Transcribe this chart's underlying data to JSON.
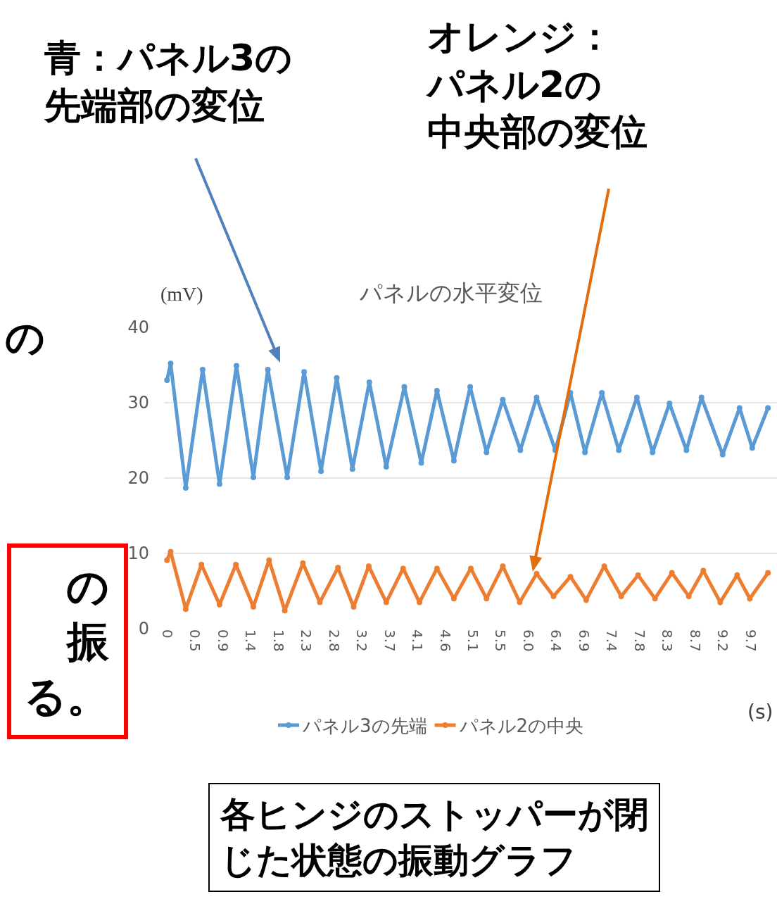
{
  "chart_data": {
    "type": "line",
    "title": "パネルの水平変位",
    "xlabel": "(s)",
    "ylabel": "(mV)",
    "xlim": [
      -0.05,
      10.1
    ],
    "ylim": [
      0,
      40
    ],
    "yticks": [
      0,
      10,
      20,
      30,
      40
    ],
    "xticks": [
      {
        "value": 0,
        "label": "0"
      },
      {
        "value": 0.46,
        "label": "0.5"
      },
      {
        "value": 0.92,
        "label": "0.9"
      },
      {
        "value": 1.38,
        "label": "1.4"
      },
      {
        "value": 1.84,
        "label": "1.8"
      },
      {
        "value": 2.3,
        "label": "2.3"
      },
      {
        "value": 2.76,
        "label": "2.8"
      },
      {
        "value": 3.22,
        "label": "3.2"
      },
      {
        "value": 3.68,
        "label": "3.7"
      },
      {
        "value": 4.14,
        "label": "4.1"
      },
      {
        "value": 4.6,
        "label": "4.6"
      },
      {
        "value": 5.06,
        "label": "5.1"
      },
      {
        "value": 5.52,
        "label": "5.5"
      },
      {
        "value": 5.98,
        "label": "6.0"
      },
      {
        "value": 6.44,
        "label": "6.4"
      },
      {
        "value": 6.9,
        "label": "6.9"
      },
      {
        "value": 7.36,
        "label": "7.4"
      },
      {
        "value": 7.82,
        "label": "7.8"
      },
      {
        "value": 8.28,
        "label": "8.3"
      },
      {
        "value": 8.74,
        "label": "8.7"
      },
      {
        "value": 9.2,
        "label": "9.2"
      },
      {
        "value": 9.66,
        "label": "9.7"
      }
    ],
    "grid": "y",
    "legend": "bottom",
    "marker": "circle",
    "line_style": "solid",
    "series": [
      {
        "name": "パネル3の先端",
        "color": "#5b9bd5",
        "x": [
          0,
          0.06,
          0.31,
          0.59,
          0.87,
          1.15,
          1.43,
          1.67,
          1.99,
          2.27,
          2.55,
          2.81,
          3.07,
          3.35,
          3.63,
          3.93,
          4.21,
          4.47,
          4.75,
          5.02,
          5.29,
          5.56,
          5.85,
          6.12,
          6.43,
          6.68,
          6.92,
          7.2,
          7.48,
          7.78,
          8.04,
          8.32,
          8.6,
          8.85,
          9.2,
          9.48,
          9.69,
          9.95
        ],
        "values": [
          33,
          35.2,
          18.7,
          34.4,
          19.2,
          34.9,
          20.1,
          34.4,
          20.1,
          34.1,
          20.9,
          33.3,
          21.2,
          32.7,
          21.5,
          32.1,
          22,
          31.6,
          22.3,
          32.1,
          23.4,
          30.4,
          23.7,
          30.7,
          23.7,
          31.3,
          23.4,
          31.3,
          23.7,
          30.7,
          23.4,
          29.9,
          23.7,
          30.7,
          23.1,
          29.3,
          24,
          29.3
        ]
      },
      {
        "name": "パネル2の中央",
        "color": "#ed7d31",
        "x": [
          0,
          0.06,
          0.31,
          0.57,
          0.87,
          1.14,
          1.43,
          1.69,
          1.95,
          2.25,
          2.53,
          2.83,
          3.09,
          3.34,
          3.63,
          3.91,
          4.18,
          4.47,
          4.75,
          5.03,
          5.29,
          5.56,
          5.84,
          6.12,
          6.4,
          6.68,
          6.94,
          7.24,
          7.52,
          7.8,
          8.08,
          8.36,
          8.64,
          8.88,
          9.16,
          9.44,
          9.65,
          9.95
        ],
        "values": [
          9.1,
          10.2,
          2.6,
          8.5,
          3.2,
          8.5,
          2.9,
          9.1,
          2.4,
          8.7,
          3.5,
          8.1,
          2.9,
          8.3,
          3.5,
          8,
          3.5,
          8,
          4,
          8,
          4,
          8.3,
          3.5,
          7.3,
          4.3,
          6.9,
          3.8,
          8.3,
          4.3,
          7.1,
          4,
          7.4,
          4.3,
          7.7,
          3.5,
          7.1,
          4,
          7.4
        ]
      }
    ],
    "annotations": [
      "青：パネル3の先端部の変位",
      "オレンジ：パネル2の中央部の変位",
      "の",
      "の振る。",
      "各ヒンジのストッパーが閉じた状態の振動グラフ"
    ]
  }
}
